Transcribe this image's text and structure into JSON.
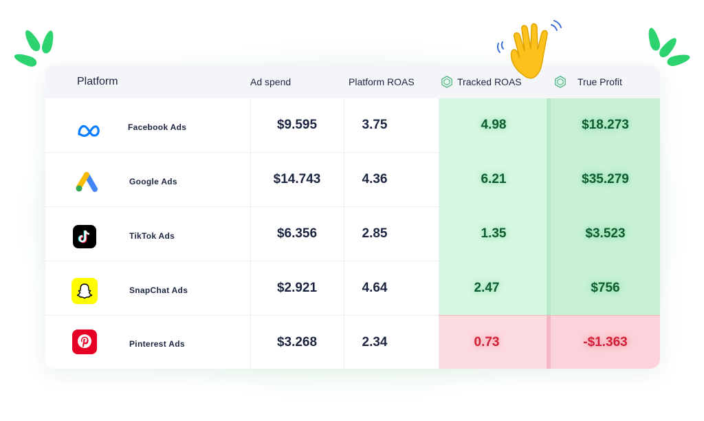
{
  "table": {
    "headers": {
      "platform": "Platform",
      "ad_spend": "Ad spend",
      "platform_roas": "Platform ROAS",
      "tracked_roas": "Tracked ROAS",
      "true_profit": "True Profit"
    },
    "rows": [
      {
        "platform": "Facebook Ads",
        "logo": "meta-icon",
        "ad_spend": "$9.595",
        "platform_roas": "3.75",
        "tracked_roas": "4.98",
        "true_profit": "$18.273",
        "status": "positive"
      },
      {
        "platform": "Google Ads",
        "logo": "google-ads-icon",
        "ad_spend": "$14.743",
        "platform_roas": "4.36",
        "tracked_roas": "6.21",
        "true_profit": "$35.279",
        "status": "positive"
      },
      {
        "platform": "TikTok Ads",
        "logo": "tiktok-icon",
        "ad_spend": "$6.356",
        "platform_roas": "2.85",
        "tracked_roas": "1.35",
        "true_profit": "$3.523",
        "status": "positive"
      },
      {
        "platform": "SnapChat Ads",
        "logo": "snapchat-icon",
        "ad_spend": "$2.921",
        "platform_roas": "4.64",
        "tracked_roas": "2.47",
        "true_profit": "$756",
        "status": "positive"
      },
      {
        "platform": "Pinterest Ads",
        "logo": "pinterest-icon",
        "ad_spend": "$3.268",
        "platform_roas": "2.34",
        "tracked_roas": "0.73",
        "true_profit": "-$1.363",
        "status": "negative"
      }
    ]
  },
  "decorations": {
    "wave": "waving-hand-icon",
    "leaves": "leaf-icon"
  },
  "colors": {
    "positive_bg": "#d6f7e1",
    "positive_bg_dark": "#c7f0d5",
    "negative_bg": "#fcdbe0",
    "positive_text": "#0f5b2f",
    "negative_text": "#d01f36",
    "brand_green": "#2dd36f"
  }
}
